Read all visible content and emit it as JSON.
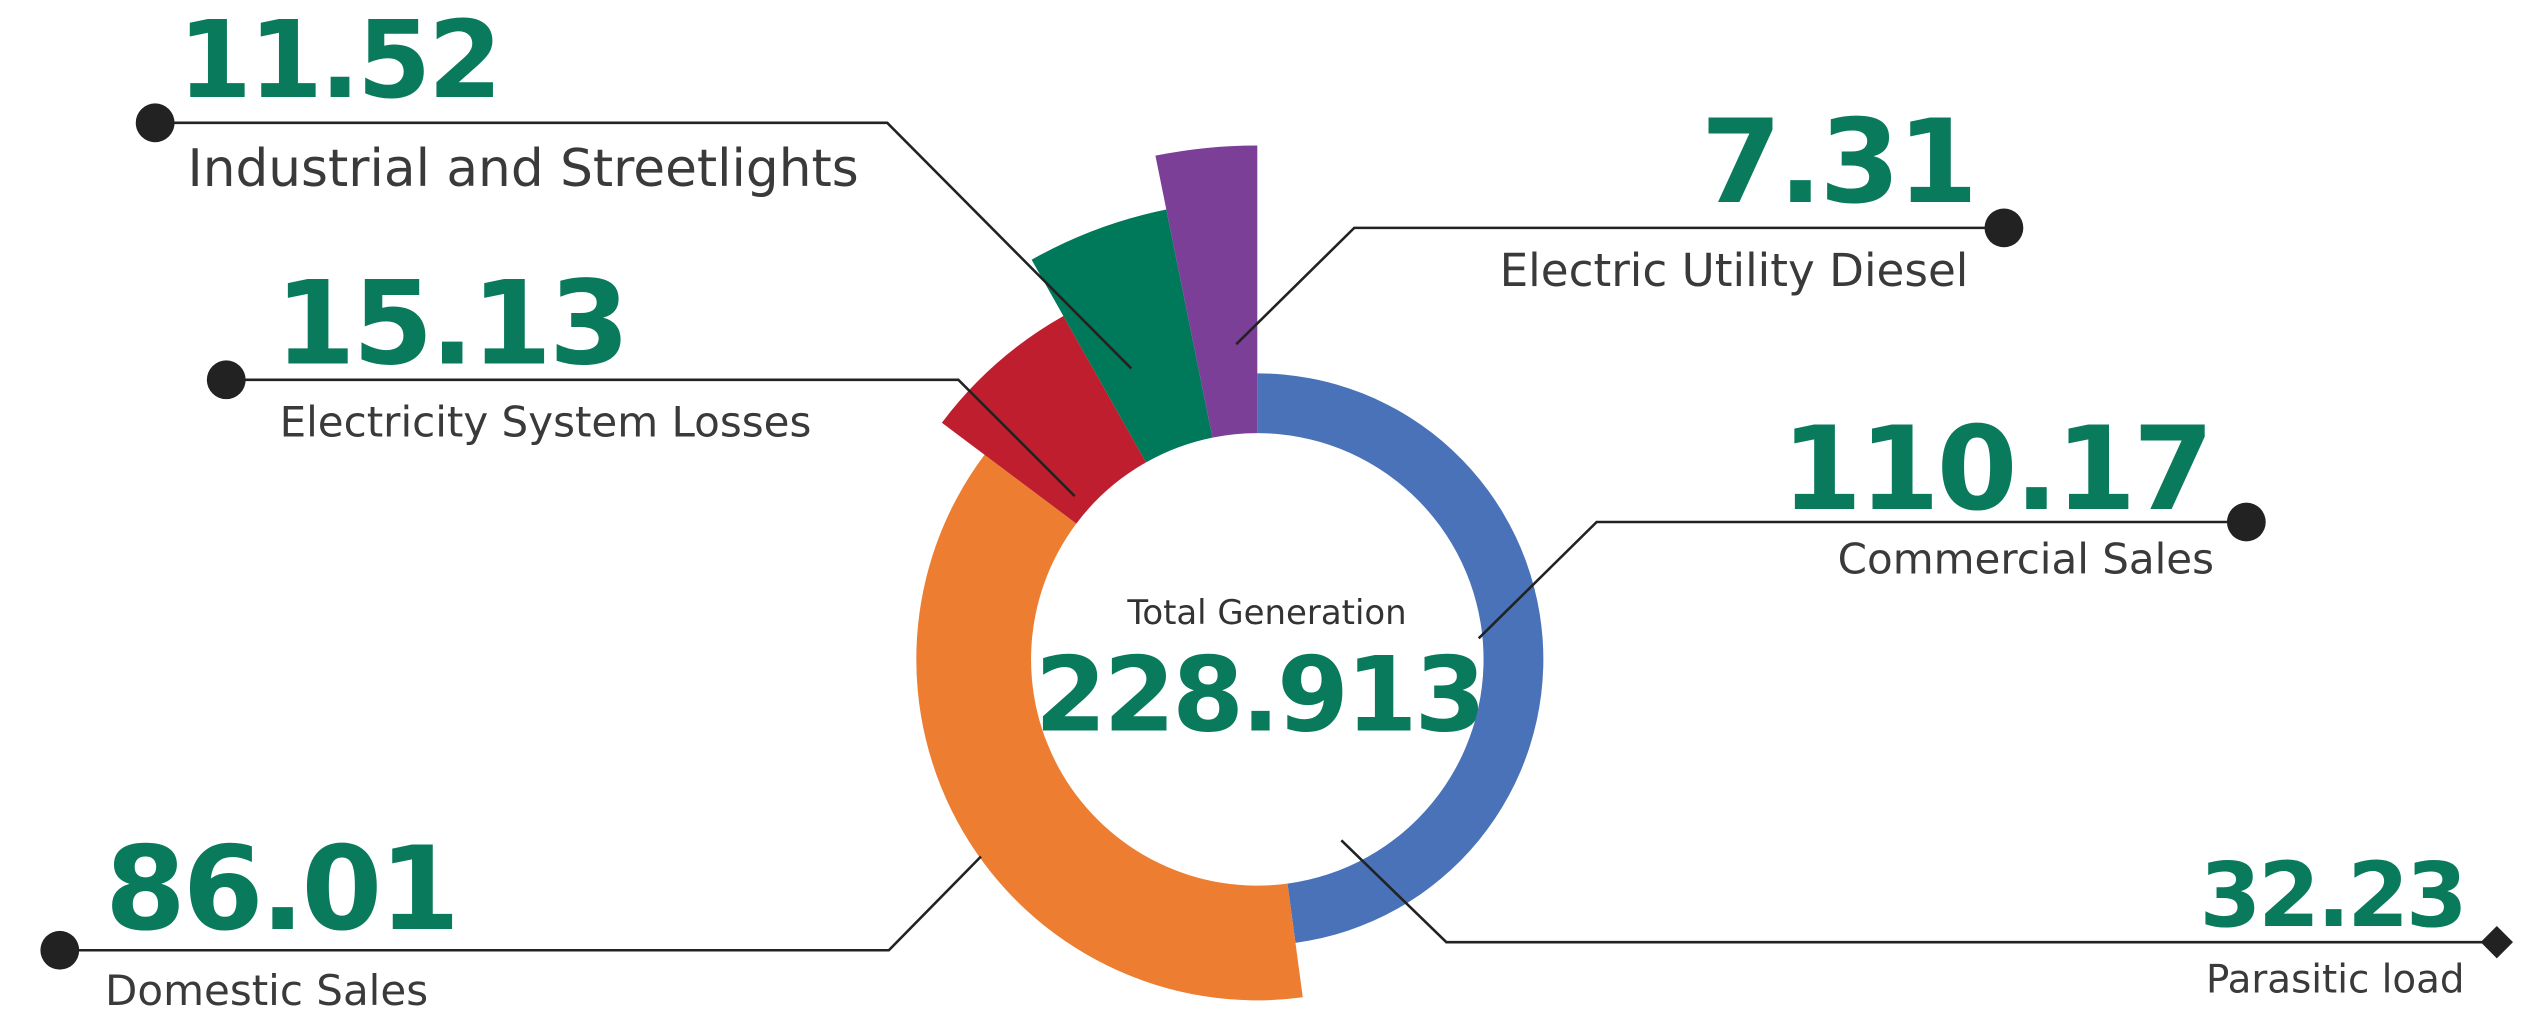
{
  "chart_data": {
    "type": "pie",
    "center_label": "Total Generation",
    "center_value": 228.913,
    "categories": [
      "Commercial Sales",
      "Domestic Sales",
      "Electricity System Losses",
      "Industrial and Streetlights",
      "Electric Utility Diesel"
    ],
    "values": [
      110.17,
      86.01,
      15.13,
      11.52,
      7.31
    ],
    "colors": [
      "#4a72b8",
      "#ed7d31",
      "#be1e2d",
      "#00785a",
      "#7b3f98"
    ],
    "callouts": [
      {
        "label": "Parasitic load",
        "value": 32.23
      }
    ]
  }
}
